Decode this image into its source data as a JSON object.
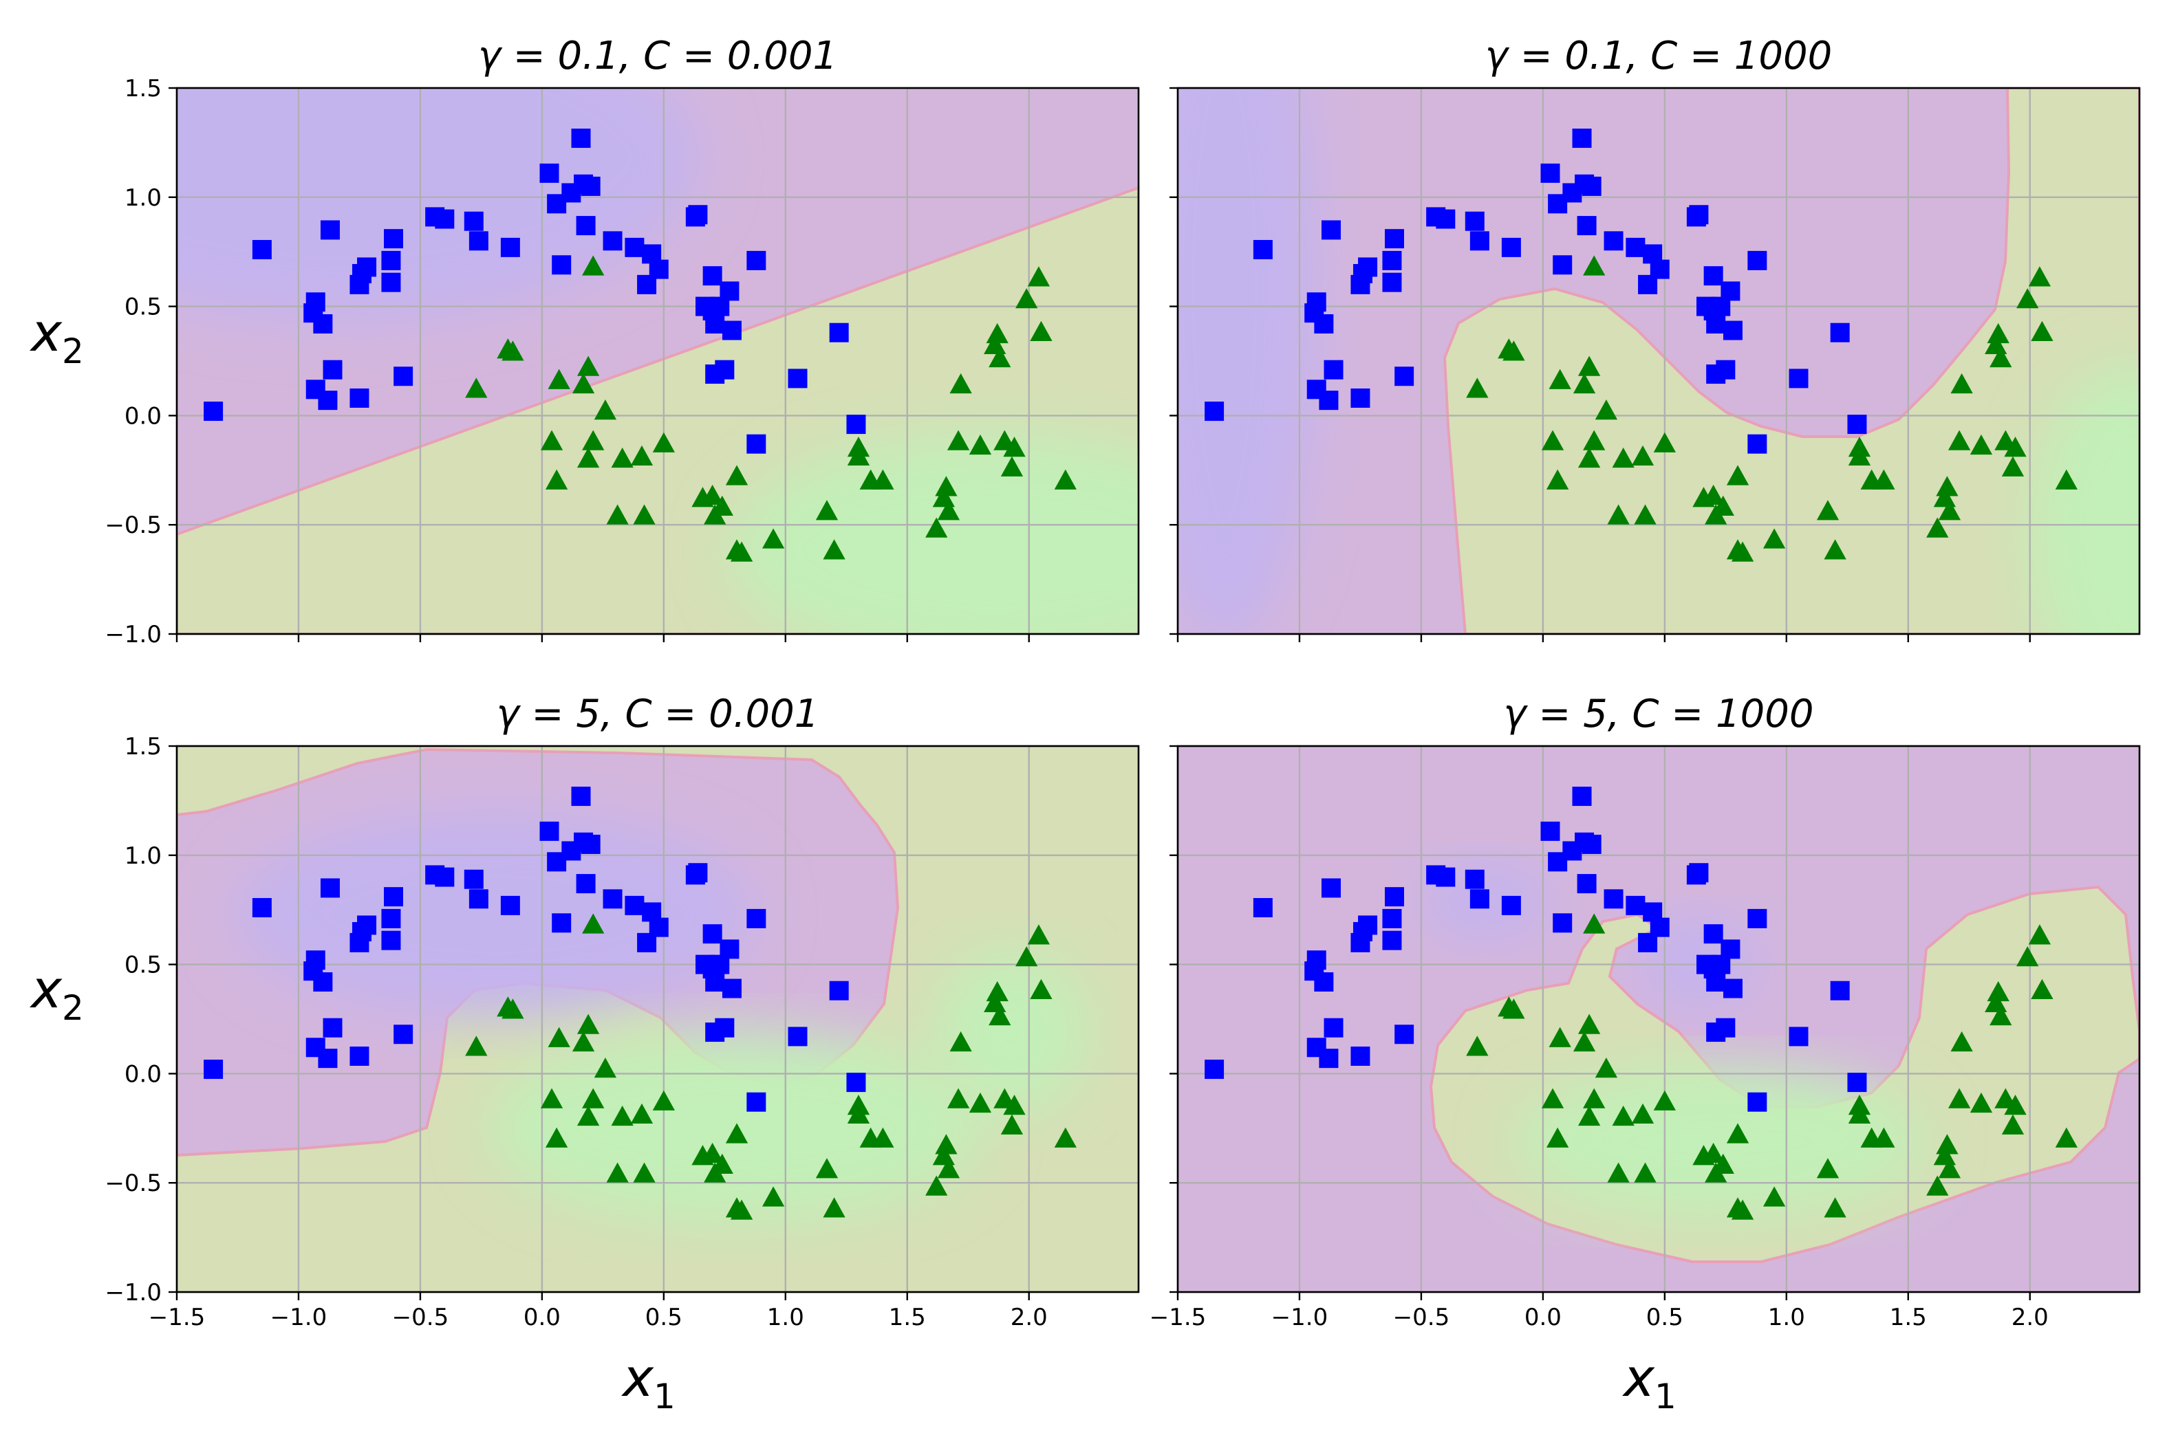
{
  "chart_data": {
    "type": "scatter",
    "xlabel": "x",
    "xlabel_sub": "1",
    "ylabel": "x",
    "ylabel_sub": "2",
    "xlim": [
      -1.5,
      2.45
    ],
    "ylim": [
      -1.0,
      1.5
    ],
    "xticks": [
      -1.5,
      -1.0,
      -0.5,
      0.0,
      0.5,
      1.0,
      1.5,
      2.0
    ],
    "xtick_labels": [
      "−1.5",
      "−1.0",
      "−0.5",
      "0.0",
      "0.5",
      "1.0",
      "1.5",
      "2.0"
    ],
    "yticks": [
      -1.0,
      -0.5,
      0.0,
      0.5,
      1.0,
      1.5
    ],
    "ytick_labels": [
      "−1.0",
      "−0.5",
      "0.0",
      "0.5",
      "1.0",
      "1.5"
    ],
    "grid": true,
    "colors": {
      "class_square": "#0000ff",
      "class_triangle": "#008000",
      "region_blue": "#c4b4ee",
      "region_purple": "#d4b6dc",
      "region_olive": "#d6dfb6",
      "region_green": "#c3efb8",
      "boundary": "#e8a0b8"
    },
    "series": [
      {
        "marker": "square",
        "points": [
          [
            -1.35,
            0.02
          ],
          [
            -1.15,
            0.76
          ],
          [
            -0.94,
            0.47
          ],
          [
            -0.93,
            0.52
          ],
          [
            -0.93,
            0.12
          ],
          [
            -0.9,
            0.42
          ],
          [
            -0.88,
            0.07
          ],
          [
            -0.87,
            0.85
          ],
          [
            -0.86,
            0.21
          ],
          [
            -0.75,
            0.08
          ],
          [
            -0.75,
            0.6
          ],
          [
            -0.74,
            0.65
          ],
          [
            -0.72,
            0.68
          ],
          [
            -0.62,
            0.61
          ],
          [
            -0.62,
            0.71
          ],
          [
            -0.61,
            0.81
          ],
          [
            -0.57,
            0.18
          ],
          [
            -0.44,
            0.91
          ],
          [
            -0.4,
            0.9
          ],
          [
            -0.28,
            0.89
          ],
          [
            -0.26,
            0.8
          ],
          [
            -0.13,
            0.77
          ],
          [
            0.03,
            1.11
          ],
          [
            0.06,
            0.97
          ],
          [
            0.08,
            0.69
          ],
          [
            0.12,
            1.02
          ],
          [
            0.16,
            1.27
          ],
          [
            0.17,
            1.06
          ],
          [
            0.18,
            0.87
          ],
          [
            0.2,
            1.05
          ],
          [
            0.29,
            0.8
          ],
          [
            0.38,
            0.77
          ],
          [
            0.43,
            0.6
          ],
          [
            0.45,
            0.74
          ],
          [
            0.48,
            0.67
          ],
          [
            0.63,
            0.91
          ],
          [
            0.64,
            0.92
          ],
          [
            0.67,
            0.5
          ],
          [
            0.7,
            0.64
          ],
          [
            0.7,
            0.48
          ],
          [
            0.71,
            0.42
          ],
          [
            0.71,
            0.19
          ],
          [
            0.73,
            0.5
          ],
          [
            0.75,
            0.21
          ],
          [
            0.77,
            0.57
          ],
          [
            0.78,
            0.39
          ],
          [
            0.88,
            0.71
          ],
          [
            0.88,
            -0.13
          ],
          [
            1.05,
            0.17
          ],
          [
            1.22,
            0.38
          ],
          [
            1.29,
            -0.04
          ]
        ]
      },
      {
        "marker": "triangle",
        "points": [
          [
            -0.27,
            0.12
          ],
          [
            -0.14,
            0.3
          ],
          [
            -0.12,
            0.29
          ],
          [
            0.04,
            -0.12
          ],
          [
            0.06,
            -0.3
          ],
          [
            0.07,
            0.16
          ],
          [
            0.17,
            0.14
          ],
          [
            0.19,
            -0.2
          ],
          [
            0.19,
            0.22
          ],
          [
            0.21,
            -0.12
          ],
          [
            0.21,
            0.68
          ],
          [
            0.26,
            0.02
          ],
          [
            0.31,
            -0.46
          ],
          [
            0.33,
            -0.2
          ],
          [
            0.41,
            -0.19
          ],
          [
            0.42,
            -0.46
          ],
          [
            0.5,
            -0.13
          ],
          [
            0.66,
            -0.38
          ],
          [
            0.7,
            -0.37
          ],
          [
            0.71,
            -0.46
          ],
          [
            0.74,
            -0.42
          ],
          [
            0.8,
            -0.62
          ],
          [
            0.8,
            -0.28
          ],
          [
            0.82,
            -0.63
          ],
          [
            0.95,
            -0.57
          ],
          [
            1.17,
            -0.44
          ],
          [
            1.2,
            -0.62
          ],
          [
            1.3,
            -0.15
          ],
          [
            1.3,
            -0.19
          ],
          [
            1.35,
            -0.3
          ],
          [
            1.4,
            -0.3
          ],
          [
            1.62,
            -0.52
          ],
          [
            1.65,
            -0.38
          ],
          [
            1.66,
            -0.33
          ],
          [
            1.67,
            -0.44
          ],
          [
            1.71,
            -0.12
          ],
          [
            1.72,
            0.14
          ],
          [
            1.8,
            -0.14
          ],
          [
            1.86,
            0.32
          ],
          [
            1.87,
            0.37
          ],
          [
            1.88,
            0.26
          ],
          [
            1.9,
            -0.12
          ],
          [
            1.93,
            -0.24
          ],
          [
            1.94,
            -0.15
          ],
          [
            1.99,
            0.53
          ],
          [
            2.04,
            0.63
          ],
          [
            2.05,
            0.38
          ],
          [
            2.15,
            -0.3
          ]
        ]
      }
    ],
    "panels": [
      {
        "title": "γ = 0.1, C = 0.001"
      },
      {
        "title": "γ = 0.1, C = 1000"
      },
      {
        "title": "γ = 5, C = 0.001"
      },
      {
        "title": "γ = 5, C = 1000"
      }
    ]
  }
}
